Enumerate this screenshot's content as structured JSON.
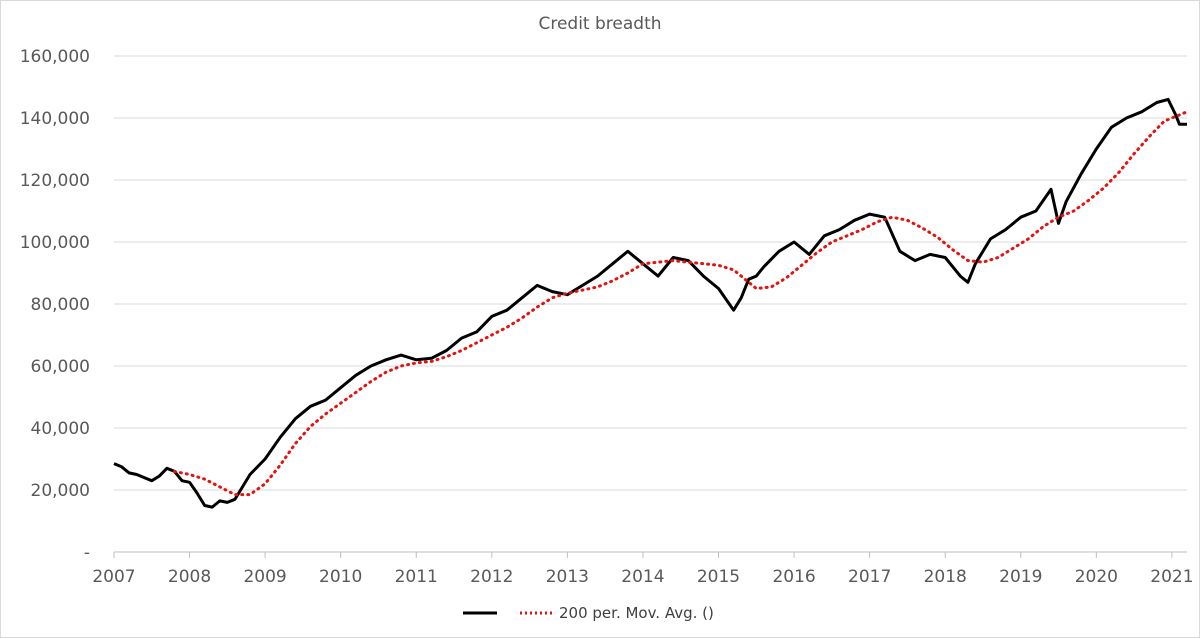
{
  "chart_data": {
    "type": "line",
    "title": "Credit breadth",
    "xlabel": "",
    "ylabel": "",
    "x_tick_labels": [
      "2007",
      "2008",
      "2009",
      "2010",
      "2011",
      "2012",
      "2013",
      "2014",
      "2015",
      "2016",
      "2017",
      "2018",
      "2019",
      "2020",
      "2021"
    ],
    "y_tick_labels": [
      "-",
      "20,000",
      "40,000",
      "60,000",
      "80,000",
      "100,000",
      "120,000",
      "140,000",
      "160,000"
    ],
    "xlim": [
      2007.0,
      2021.2
    ],
    "ylim": [
      0,
      160000
    ],
    "grid": "horizontal",
    "legend_position": "bottom",
    "series": [
      {
        "name": "",
        "color": "#000000",
        "style": "solid",
        "x": [
          2007.0,
          2007.1,
          2007.2,
          2007.3,
          2007.4,
          2007.5,
          2007.6,
          2007.7,
          2007.8,
          2007.9,
          2008.0,
          2008.1,
          2008.2,
          2008.3,
          2008.4,
          2008.5,
          2008.6,
          2008.7,
          2008.8,
          2009.0,
          2009.2,
          2009.4,
          2009.6,
          2009.8,
          2010.0,
          2010.2,
          2010.4,
          2010.6,
          2010.8,
          2011.0,
          2011.2,
          2011.4,
          2011.6,
          2011.8,
          2012.0,
          2012.2,
          2012.4,
          2012.6,
          2012.8,
          2013.0,
          2013.2,
          2013.4,
          2013.6,
          2013.8,
          2014.0,
          2014.2,
          2014.4,
          2014.6,
          2014.8,
          2015.0,
          2015.2,
          2015.3,
          2015.4,
          2015.5,
          2015.6,
          2015.8,
          2016.0,
          2016.2,
          2016.4,
          2016.6,
          2016.8,
          2017.0,
          2017.2,
          2017.4,
          2017.6,
          2017.8,
          2018.0,
          2018.2,
          2018.3,
          2018.4,
          2018.6,
          2018.8,
          2019.0,
          2019.2,
          2019.4,
          2019.5,
          2019.6,
          2019.8,
          2020.0,
          2020.2,
          2020.4,
          2020.6,
          2020.8,
          2020.95,
          2021.05,
          2021.1,
          2021.2
        ],
        "values": [
          28500,
          27500,
          25500,
          25000,
          24000,
          23000,
          24500,
          27000,
          26000,
          23000,
          22500,
          19000,
          15000,
          14500,
          16500,
          16000,
          17000,
          21000,
          25000,
          30000,
          37000,
          43000,
          47000,
          49000,
          53000,
          57000,
          60000,
          62000,
          63500,
          62000,
          62500,
          65000,
          69000,
          71000,
          76000,
          78000,
          82000,
          86000,
          84000,
          83000,
          86000,
          89000,
          93000,
          97000,
          93000,
          89000,
          95000,
          94000,
          89000,
          85000,
          78000,
          82000,
          88000,
          89000,
          92000,
          97000,
          100000,
          96000,
          102000,
          104000,
          107000,
          109000,
          108000,
          97000,
          94000,
          96000,
          95000,
          89000,
          87000,
          93000,
          101000,
          104000,
          108000,
          110000,
          117000,
          106000,
          113000,
          122000,
          130000,
          137000,
          140000,
          142000,
          145000,
          146000,
          141000,
          138000,
          138000
        ]
      },
      {
        "name": "200 per. Mov. Avg. ()",
        "color": "#e3140f",
        "style": "dotted",
        "x": [
          2007.8,
          2008.0,
          2008.2,
          2008.4,
          2008.6,
          2008.8,
          2009.0,
          2009.2,
          2009.4,
          2009.6,
          2009.8,
          2010.0,
          2010.2,
          2010.4,
          2010.6,
          2010.8,
          2011.0,
          2011.2,
          2011.4,
          2011.6,
          2011.8,
          2012.0,
          2012.2,
          2012.4,
          2012.6,
          2012.8,
          2013.0,
          2013.2,
          2013.4,
          2013.6,
          2013.8,
          2014.0,
          2014.2,
          2014.4,
          2014.6,
          2014.8,
          2015.0,
          2015.2,
          2015.35,
          2015.5,
          2015.7,
          2015.9,
          2016.1,
          2016.3,
          2016.5,
          2016.7,
          2016.9,
          2017.1,
          2017.3,
          2017.5,
          2017.7,
          2017.9,
          2018.1,
          2018.3,
          2018.5,
          2018.7,
          2018.9,
          2019.1,
          2019.3,
          2019.5,
          2019.7,
          2019.9,
          2020.1,
          2020.3,
          2020.5,
          2020.7,
          2020.9,
          2021.1,
          2021.2
        ],
        "values": [
          26000,
          25000,
          23500,
          21000,
          18500,
          18500,
          22000,
          28000,
          35000,
          40500,
          44500,
          48000,
          51500,
          55000,
          58000,
          60000,
          61000,
          61500,
          63000,
          65000,
          67500,
          70000,
          72500,
          75500,
          79000,
          82000,
          83500,
          84500,
          85500,
          87500,
          90000,
          93000,
          93500,
          94000,
          93500,
          93000,
          92500,
          91000,
          88000,
          85000,
          85500,
          88500,
          92500,
          96500,
          100000,
          102000,
          104000,
          106500,
          108000,
          107000,
          104500,
          101500,
          97500,
          94000,
          93500,
          95000,
          98000,
          101000,
          105000,
          108000,
          110000,
          113500,
          117500,
          122500,
          128500,
          134000,
          139000,
          141000,
          142000
        ]
      }
    ]
  }
}
